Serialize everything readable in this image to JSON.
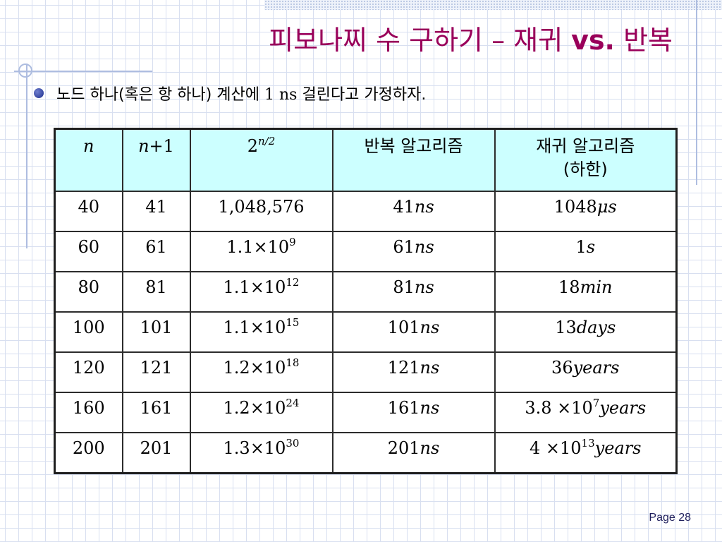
{
  "title": {
    "prefix": "피보나찌 수 구하기 – 재귀 ",
    "bold": "vs.",
    "suffix": " 반복"
  },
  "bullet": {
    "part1": "노드 하나(혹은 항 하나) 계산에 ",
    "num": "1 ns",
    "part2": " 걸린다고 가정하자."
  },
  "table": {
    "headers": {
      "n": "n",
      "n1_var": "n",
      "n1_suffix": "+1",
      "pow_base": "2",
      "pow_exp": "n/2",
      "iter": "반복 알고리즘",
      "rec_line1": "재귀 알고리즘",
      "rec_line2": "(하한)"
    },
    "rows": [
      {
        "n": "40",
        "n1": "41",
        "pow": {
          "base": "1,048,576",
          "exp": ""
        },
        "iter": {
          "num": "41",
          "unit": "ns"
        },
        "rec": {
          "pre": "1048",
          "exp": "",
          "unit": "μs"
        }
      },
      {
        "n": "60",
        "n1": "61",
        "pow": {
          "base": "1.1×10",
          "exp": "9"
        },
        "iter": {
          "num": "61",
          "unit": "ns"
        },
        "rec": {
          "pre": "1",
          "exp": "",
          "unit": "s"
        }
      },
      {
        "n": "80",
        "n1": "81",
        "pow": {
          "base": "1.1×10",
          "exp": "12"
        },
        "iter": {
          "num": "81",
          "unit": "ns"
        },
        "rec": {
          "pre": "18",
          "exp": "",
          "unit": "min"
        }
      },
      {
        "n": "100",
        "n1": "101",
        "pow": {
          "base": "1.1×10",
          "exp": "15"
        },
        "iter": {
          "num": "101",
          "unit": "ns"
        },
        "rec": {
          "pre": "13",
          "exp": "",
          "unit": "days"
        }
      },
      {
        "n": "120",
        "n1": "121",
        "pow": {
          "base": "1.2×10",
          "exp": "18"
        },
        "iter": {
          "num": "121",
          "unit": "ns"
        },
        "rec": {
          "pre": "36",
          "exp": "",
          "unit": "years"
        }
      },
      {
        "n": "160",
        "n1": "161",
        "pow": {
          "base": "1.2×10",
          "exp": "24"
        },
        "iter": {
          "num": "161",
          "unit": "ns"
        },
        "rec": {
          "pre": "3.8 ×10",
          "exp": "7",
          "unit": "years"
        }
      },
      {
        "n": "200",
        "n1": "201",
        "pow": {
          "base": "1.3×10",
          "exp": "30"
        },
        "iter": {
          "num": "201",
          "unit": "ns"
        },
        "rec": {
          "pre": "4 ×10",
          "exp": "13",
          "unit": "years"
        }
      }
    ]
  },
  "page": "Page 28",
  "colors": {
    "title": "#99005a",
    "header_bg": "#ccffff",
    "bullet": "#1c2d8c"
  }
}
